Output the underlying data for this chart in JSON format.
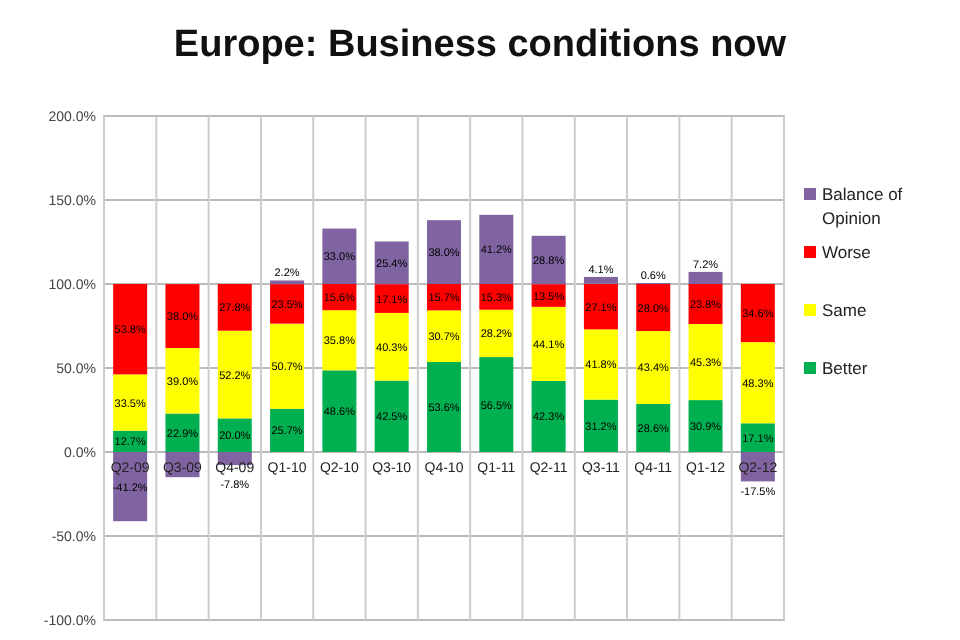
{
  "chart_data": {
    "type": "bar",
    "title": "Europe: Business conditions now",
    "stacked": true,
    "grid": true,
    "legend": "right",
    "categories": [
      "Q2-09",
      "Q3-09",
      "Q4-09",
      "Q1-10",
      "Q2-10",
      "Q3-10",
      "Q4-10",
      "Q1-11",
      "Q2-11",
      "Q3-11",
      "Q4-11",
      "Q1-12",
      "Q2-12"
    ],
    "ylim": [
      -100,
      200
    ],
    "yticks": [
      {
        "value": -100,
        "label": "-100.0%"
      },
      {
        "value": -50,
        "label": "-50.0%"
      },
      {
        "value": 0,
        "label": "0.0%"
      },
      {
        "value": 50,
        "label": "50.0%"
      },
      {
        "value": 100,
        "label": "100.0%"
      },
      {
        "value": 150,
        "label": "150.0%"
      },
      {
        "value": 200,
        "label": "200.0%"
      }
    ],
    "series": [
      {
        "name": "Better",
        "color": "#00b050",
        "values": [
          12.7,
          22.9,
          20.0,
          25.7,
          48.6,
          42.5,
          53.6,
          56.5,
          42.3,
          31.2,
          28.6,
          30.9,
          17.1
        ],
        "value_labels": [
          "12.7%",
          "22.9%",
          "20.0%",
          "25.7%",
          "48.6%",
          "42.5%",
          "53.6%",
          "56.5%",
          "42.3%",
          "31.2%",
          "28.6%",
          "30.9%",
          "17.1%"
        ]
      },
      {
        "name": "Same",
        "color": "#ffff00",
        "values": [
          33.5,
          39.0,
          52.2,
          50.7,
          35.8,
          40.3,
          30.7,
          28.2,
          44.1,
          41.8,
          43.4,
          45.3,
          48.3
        ],
        "value_labels": [
          "33.5%",
          "39.0%",
          "52.2%",
          "50.7%",
          "35.8%",
          "40.3%",
          "30.7%",
          "28.2%",
          "44.1%",
          "41.8%",
          "43.4%",
          "45.3%",
          "48.3%"
        ]
      },
      {
        "name": "Worse",
        "color": "#ff0000",
        "values": [
          53.8,
          38.0,
          27.8,
          23.5,
          15.6,
          17.1,
          15.7,
          15.3,
          13.5,
          27.1,
          28.0,
          23.8,
          34.6
        ],
        "value_labels": [
          "53.8%",
          "38.0%",
          "27.8%",
          "23.5%",
          "15.6%",
          "17.1%",
          "15.7%",
          "15.3%",
          "13.5%",
          "27.1%",
          "28.0%",
          "23.8%",
          "34.6%"
        ]
      },
      {
        "name": "Balance of Opinion",
        "color": "#8064a2",
        "values": [
          -41.2,
          -15,
          -7.8,
          2.2,
          33.0,
          25.4,
          38.0,
          41.2,
          28.8,
          4.1,
          0.6,
          7.2,
          -17.5
        ],
        "value_labels": [
          "-41.2%",
          null,
          "-7.8%",
          "2.2%",
          "33.0%",
          "25.4%",
          "38.0%",
          "41.2%",
          "28.8%",
          "4.1%",
          "0.6%",
          "7.2%",
          "-17.5%"
        ]
      }
    ]
  }
}
